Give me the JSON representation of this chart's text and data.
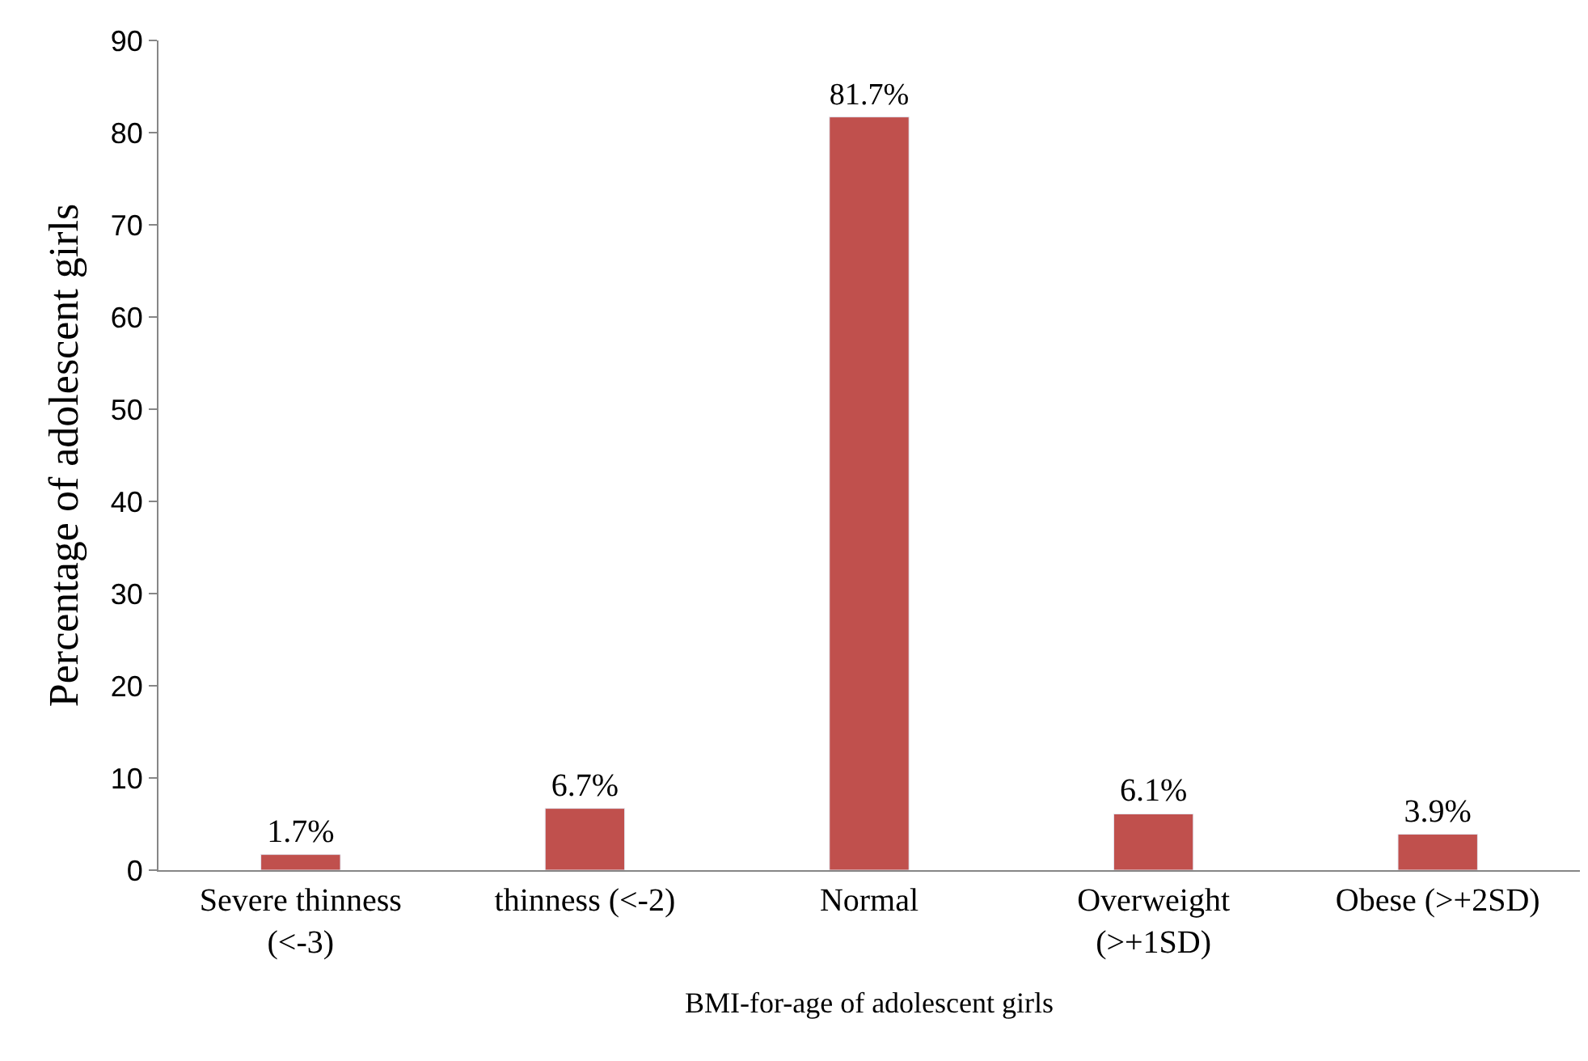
{
  "chart_data": {
    "type": "bar",
    "xlabel": "BMI-for-age of adolescent girls",
    "ylabel": "Percentage of adolescent girls",
    "categories": [
      "Severe thinness\n(<-3)",
      "thinness (<-2)",
      "Normal",
      "Overweight\n(>+1SD)",
      "Obese (>+2SD)"
    ],
    "values": [
      1.7,
      6.7,
      81.7,
      6.1,
      3.9
    ],
    "value_labels": [
      "1.7%",
      "6.7%",
      "81.7%",
      "6.1%",
      "3.9%"
    ],
    "color": "#c0504d",
    "ylim": [
      0,
      90
    ],
    "yticks": [
      0,
      10,
      20,
      30,
      40,
      50,
      60,
      70,
      80,
      90
    ]
  }
}
